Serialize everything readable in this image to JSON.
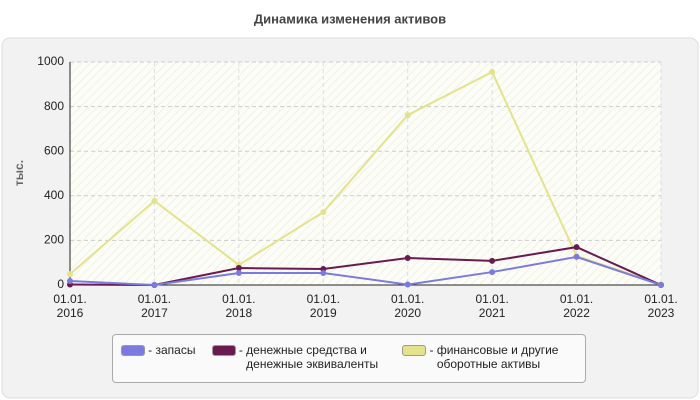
{
  "chart_data": {
    "type": "line",
    "title": "Динамика изменения активов",
    "y_label": "тыс.",
    "categories": [
      "01.01. 2016",
      "01.01. 2017",
      "01.01. 2018",
      "01.01. 2019",
      "01.01. 2020",
      "01.01. 2021",
      "01.01. 2022",
      "01.01. 2023"
    ],
    "series": [
      {
        "name": "запасы",
        "color": "#7b7bdf",
        "values": [
          18,
          0,
          54,
          54,
          2,
          58,
          126,
          0
        ]
      },
      {
        "name": "денежные средства и денежные эквиваленты",
        "color": "#6b1a4f",
        "values": [
          2,
          0,
          76,
          72,
          121,
          108,
          170,
          0
        ]
      },
      {
        "name": "финансовые и другие оборотные активы",
        "color": "#e3e38c",
        "values": [
          49,
          377,
          90,
          327,
          762,
          955,
          130,
          3
        ]
      }
    ],
    "ylim": [
      0,
      1000
    ],
    "yticks": [
      0,
      200,
      400,
      600,
      800,
      1000
    ],
    "grid": true
  }
}
